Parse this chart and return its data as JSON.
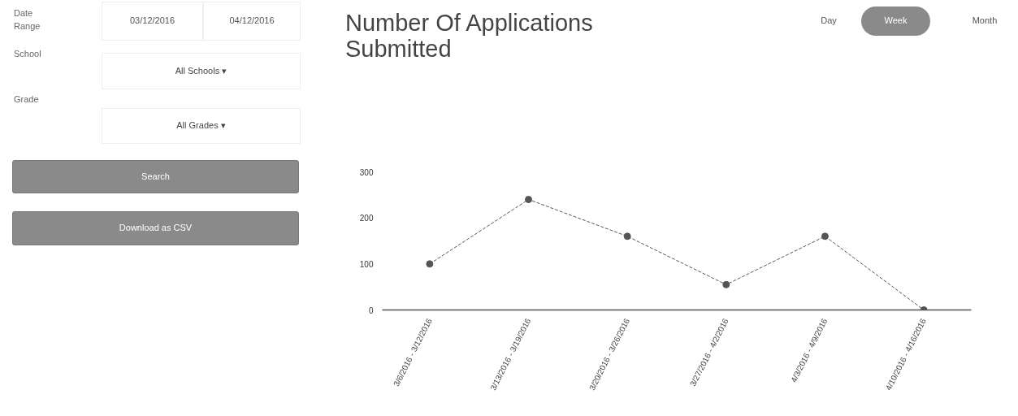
{
  "chart_data": [
    {
      "type": "other",
      "annotations": [
        "Date Range",
        "03/12/2016",
        "04/12/2016",
        "School",
        "All Schools ▾",
        "Grade",
        "All Grades ▾",
        "Search",
        "Download as CSV"
      ]
    },
    {
      "type": "line",
      "title": "Number Of Applications Submitted",
      "categories": [
        "3/6/2016 - 3/12/2016",
        "3/13/2016 - 3/19/2016",
        "3/20/2016 - 3/26/2016",
        "3/27/2016 - 4/2/2016",
        "4/3/2016 - 4/9/2016",
        "4/10/2016 - 4/16/2016"
      ],
      "series": [
        {
          "color": "#555555",
          "values": [
            100,
            240,
            160,
            55,
            160,
            0
          ]
        }
      ],
      "ylim": [
        0,
        300
      ],
      "yticks": [
        0,
        100,
        200,
        300
      ],
      "marker": "circle",
      "line_style": "dashed",
      "annotations": [
        "Day",
        "Week",
        "Month"
      ]
    }
  ]
}
